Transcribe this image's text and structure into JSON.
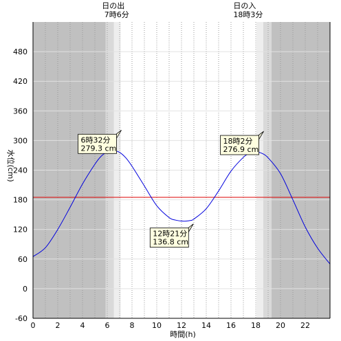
{
  "chart_data": {
    "type": "line",
    "xlabel": "時間(h)",
    "ylabel": "水位(cm)",
    "xlim": [
      0,
      24
    ],
    "ylim": [
      -60,
      540
    ],
    "x_ticks": [
      0,
      2,
      4,
      6,
      8,
      10,
      12,
      14,
      16,
      18,
      20,
      22
    ],
    "x_tick_labels": [
      "0",
      "2",
      "4",
      "6",
      "8",
      "10",
      "12",
      "14",
      "16",
      "18",
      "20",
      "22"
    ],
    "y_ticks": [
      -60,
      0,
      60,
      120,
      180,
      240,
      300,
      360,
      420,
      480
    ],
    "y_tick_labels": [
      "-60",
      "0",
      "60",
      "120",
      "180",
      "240",
      "300",
      "360",
      "420",
      "480"
    ],
    "grid": true,
    "reference_line": {
      "value": 185,
      "color": "#dd0000"
    },
    "series": [
      {
        "color": "#0000dd",
        "x": [
          0,
          1,
          2,
          3,
          4,
          5,
          5.5,
          6,
          6.53,
          7,
          7.5,
          8,
          9,
          10,
          11,
          11.5,
          12,
          12.35,
          12.7,
          13,
          14,
          15,
          16,
          17,
          17.5,
          18.03,
          18.5,
          19,
          20,
          21,
          22,
          23,
          24
        ],
        "y": [
          65,
          83,
          120,
          165,
          212,
          252,
          268,
          277,
          279.3,
          276,
          265,
          248,
          208,
          168,
          144,
          139,
          137,
          136.8,
          138,
          141,
          162,
          198,
          238,
          266,
          274,
          276.9,
          274,
          265,
          233,
          180,
          125,
          82,
          50
        ]
      }
    ],
    "annotations": [
      {
        "time": "6時32分",
        "value": "279.3 cm",
        "x": 6.53,
        "y": 279.3
      },
      {
        "time": "12時21分",
        "value": "136.8 cm",
        "x": 12.35,
        "y": 136.8
      },
      {
        "time": "18時2分",
        "value": "276.9 cm",
        "x": 18.03,
        "y": 276.9
      }
    ],
    "sunrise": {
      "label": "日の出",
      "time": "7時6分",
      "hour": 7.1
    },
    "sunset": {
      "label": "日の入",
      "time": "18時3分",
      "hour": 18.05
    },
    "colors": {
      "night": "#c0c0c0",
      "twilight": "#d9d9d9",
      "dawn": "#eeeeee",
      "day": "#ffffff"
    }
  }
}
